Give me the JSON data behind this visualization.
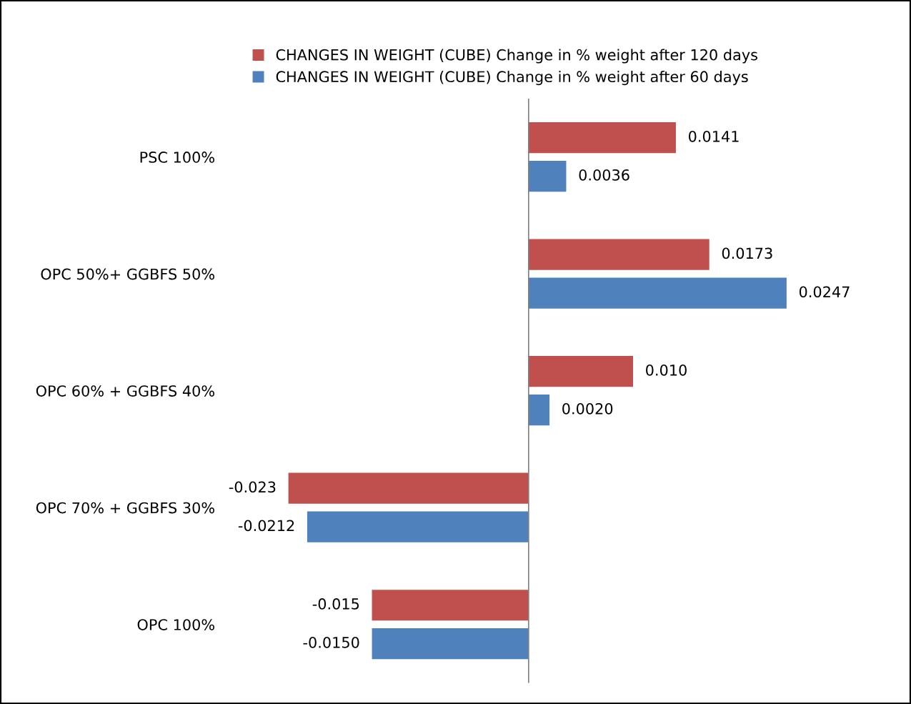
{
  "chart_data": {
    "type": "bar",
    "orientation": "horizontal",
    "categories": [
      "PSC 100%",
      "OPC 50%+ GGBFS 50%",
      "OPC 60% + GGBFS 40%",
      "OPC 70% + GGBFS 30%",
      "OPC 100%"
    ],
    "series": [
      {
        "name": "CHANGES IN WEIGHT (CUBE) Change in % weight after 120 days",
        "color": "#c0504d",
        "values": [
          0.0141,
          0.0173,
          0.01,
          -0.023,
          -0.015
        ],
        "value_labels": [
          "0.0141",
          "0.0173",
          "0.010",
          "-0.023",
          "-0.015"
        ]
      },
      {
        "name": "CHANGES IN WEIGHT (CUBE) Change in % weight after 60 days",
        "color": "#4f81bd",
        "values": [
          0.0036,
          0.0247,
          0.002,
          -0.0212,
          -0.015
        ],
        "value_labels": [
          "0.0036",
          "0.0247",
          "0.0020",
          "-0.0212",
          "-0.0150"
        ]
      }
    ],
    "legend": "top",
    "grid": false
  }
}
